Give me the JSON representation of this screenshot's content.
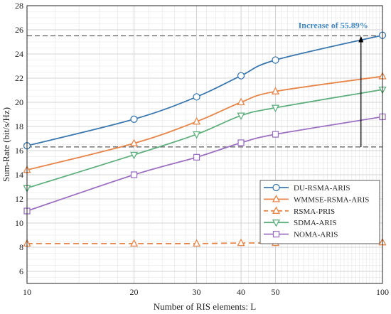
{
  "chart_data": {
    "type": "line",
    "title": "",
    "xlabel": "Number of RIS elements: L",
    "ylabel": "Sum-Rate (bit/s/Hz)",
    "x": [
      10,
      20,
      30,
      40,
      50,
      100
    ],
    "xticks": [
      10,
      20,
      30,
      40,
      50,
      100
    ],
    "xscale": "log",
    "xlim": [
      10,
      100
    ],
    "yticks": [
      6,
      8,
      10,
      12,
      14,
      16,
      18,
      20,
      22,
      24,
      26,
      28
    ],
    "ylim": [
      5,
      28
    ],
    "grid": true,
    "legend_position": "lower-right",
    "series": [
      {
        "name": "DU-RSMA-ARIS",
        "values": [
          16.4,
          18.6,
          20.45,
          22.2,
          23.5,
          25.55
        ],
        "color": "#3b78b0",
        "marker": "circle",
        "dashed": false
      },
      {
        "name": "WMMSE-RSMA-ARIS",
        "values": [
          14.4,
          16.6,
          18.4,
          20.0,
          20.9,
          22.15
        ],
        "color": "#e8864a",
        "marker": "triangle-up",
        "dashed": false
      },
      {
        "name": "RSMA-PRIS",
        "values": [
          8.3,
          8.3,
          8.3,
          8.35,
          8.35,
          8.4
        ],
        "color": "#e8864a",
        "marker": "triangle-up",
        "dashed": true
      },
      {
        "name": "SDMA-ARIS",
        "values": [
          12.9,
          15.65,
          17.35,
          18.9,
          19.55,
          21.05
        ],
        "color": "#5fb07e",
        "marker": "triangle-down",
        "dashed": false
      },
      {
        "name": "NOMA-ARIS",
        "values": [
          11.0,
          14.0,
          15.45,
          16.65,
          17.35,
          18.8
        ],
        "color": "#9d72c2",
        "marker": "square",
        "dashed": false
      }
    ],
    "reference_lines": [
      25.5,
      16.3
    ],
    "annotation": {
      "text": "Increase of 55.89%",
      "color": "#3f88c5",
      "arrow_x": 87,
      "arrow_from": 16.3,
      "arrow_to": 25.5
    }
  }
}
